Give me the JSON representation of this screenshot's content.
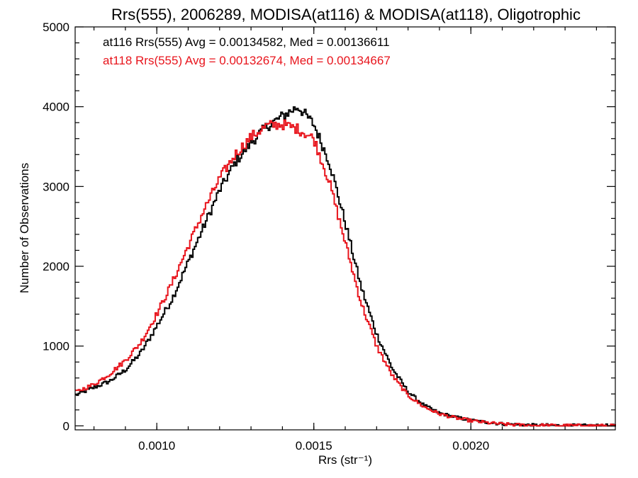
{
  "chart_data": {
    "type": "line",
    "title": "Rrs(555), 2006289, MODISA(at116) & MODISA(at118), Oligotrophic",
    "xlabel": "Rrs (str⁻¹)",
    "ylabel": "Number of Observations",
    "xlim": [
      0.00074,
      0.00246
    ],
    "ylim": [
      -50,
      5000
    ],
    "x_ticks": [
      0.001,
      0.0015,
      0.002
    ],
    "x_tick_labels": [
      "0.0010",
      "0.0015",
      "0.0020"
    ],
    "y_ticks": [
      0,
      1000,
      2000,
      3000,
      4000,
      5000
    ],
    "y_tick_labels": [
      "0",
      "1000",
      "2000",
      "3000",
      "4000",
      "5000"
    ],
    "grid": false,
    "legend": "top-left",
    "series": [
      {
        "name": "at116",
        "color": "#000000",
        "legend_text": "at116 Rrs(555) Avg = 0.00134582, Med = 0.00136611",
        "points": [
          [
            0.00074,
            380
          ],
          [
            0.0008,
            480
          ],
          [
            0.00085,
            560
          ],
          [
            0.0009,
            700
          ],
          [
            0.00095,
            920
          ],
          [
            0.001,
            1250
          ],
          [
            0.00105,
            1600
          ],
          [
            0.0011,
            2050
          ],
          [
            0.00115,
            2500
          ],
          [
            0.0012,
            2950
          ],
          [
            0.00125,
            3300
          ],
          [
            0.0013,
            3550
          ],
          [
            0.00135,
            3750
          ],
          [
            0.0014,
            3880
          ],
          [
            0.00145,
            4000
          ],
          [
            0.0015,
            3780
          ],
          [
            0.00155,
            3300
          ],
          [
            0.0016,
            2550
          ],
          [
            0.00165,
            1750
          ],
          [
            0.0017,
            1150
          ],
          [
            0.00175,
            720
          ],
          [
            0.0018,
            430
          ],
          [
            0.00185,
            260
          ],
          [
            0.0019,
            160
          ],
          [
            0.00195,
            110
          ],
          [
            0.002,
            70
          ],
          [
            0.00205,
            45
          ],
          [
            0.0021,
            25
          ],
          [
            0.00215,
            15
          ],
          [
            0.0022,
            8
          ],
          [
            0.0023,
            4
          ],
          [
            0.00246,
            2
          ]
        ]
      },
      {
        "name": "at118",
        "color": "#e8141c",
        "legend_text": "at118 Rrs(555) Avg = 0.00132674, Med = 0.00134667",
        "points": [
          [
            0.00074,
            420
          ],
          [
            0.0008,
            520
          ],
          [
            0.00085,
            650
          ],
          [
            0.0009,
            820
          ],
          [
            0.00095,
            1050
          ],
          [
            0.001,
            1400
          ],
          [
            0.00105,
            1800
          ],
          [
            0.0011,
            2250
          ],
          [
            0.00115,
            2700
          ],
          [
            0.0012,
            3100
          ],
          [
            0.00125,
            3400
          ],
          [
            0.0013,
            3620
          ],
          [
            0.00135,
            3760
          ],
          [
            0.0014,
            3780
          ],
          [
            0.00145,
            3720
          ],
          [
            0.0015,
            3600
          ],
          [
            0.00155,
            3050
          ],
          [
            0.0016,
            2300
          ],
          [
            0.00165,
            1550
          ],
          [
            0.0017,
            1000
          ],
          [
            0.00175,
            630
          ],
          [
            0.0018,
            380
          ],
          [
            0.00185,
            240
          ],
          [
            0.0019,
            150
          ],
          [
            0.00195,
            100
          ],
          [
            0.002,
            65
          ],
          [
            0.00205,
            40
          ],
          [
            0.0021,
            22
          ],
          [
            0.00215,
            12
          ],
          [
            0.0022,
            7
          ],
          [
            0.0023,
            3
          ],
          [
            0.00246,
            1
          ]
        ]
      }
    ]
  }
}
